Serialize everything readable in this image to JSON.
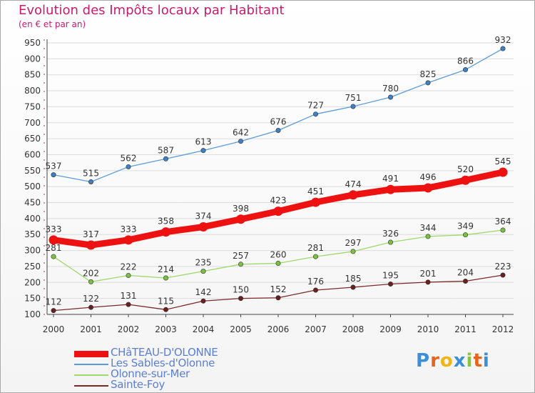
{
  "header": {
    "title": "Evolution des Impôts locaux par Habitant",
    "subtitle": "(en € et par an)"
  },
  "logo": {
    "text": "Proxiti",
    "letters": [
      "P",
      "r",
      "o",
      "x",
      "i",
      "t",
      "i"
    ],
    "colors": [
      "#3a8fd8",
      "#e8641e",
      "#f2b517",
      "#3a8fd8",
      "#8ac43f",
      "#e8641e",
      "#3a8fd8"
    ]
  },
  "colors": {
    "title": "#c71c6f",
    "axis_text": "#333333",
    "grid": "#dcdcdc",
    "label_text": "#333333",
    "legend_text": "#5b7fd1"
  },
  "chart_data": {
    "type": "line",
    "title": "Evolution des Impôts locaux par Habitant",
    "subtitle": "(en € et par an)",
    "x": [
      "2000",
      "2001",
      "2002",
      "2003",
      "2004",
      "2005",
      "2006",
      "2007",
      "2008",
      "2009",
      "2010",
      "2011",
      "2012"
    ],
    "ylim": [
      100,
      950
    ],
    "yticks": [
      100,
      150,
      200,
      250,
      300,
      350,
      400,
      450,
      500,
      550,
      600,
      650,
      700,
      750,
      800,
      850,
      900,
      950
    ],
    "grid": "horizontal",
    "legend_position": "bottom-left",
    "series": [
      {
        "name": "Les Sables-d'Olonne",
        "color": "#5b9bd5",
        "point_color": "#3f7fc2",
        "emphasis": false,
        "values": [
          537,
          515,
          562,
          587,
          613,
          642,
          676,
          727,
          751,
          780,
          825,
          866,
          932
        ]
      },
      {
        "name": "Olonne-sur-Mer",
        "color": "#9fd86b",
        "point_color": "#7cc043",
        "emphasis": false,
        "values": [
          281,
          202,
          222,
          214,
          235,
          257,
          260,
          281,
          297,
          326,
          344,
          349,
          364
        ]
      },
      {
        "name": "Sainte-Foy",
        "color": "#7b2a2a",
        "point_color": "#6b1f1f",
        "emphasis": false,
        "values": [
          112,
          122,
          131,
          115,
          142,
          150,
          152,
          176,
          185,
          195,
          201,
          204,
          223
        ]
      },
      {
        "name": "CHâTEAU-D'OLONNE",
        "color": "#ee1111",
        "point_color": "#ee1111",
        "emphasis": true,
        "values": [
          333,
          317,
          333,
          358,
          374,
          398,
          423,
          451,
          474,
          491,
          496,
          520,
          545
        ]
      }
    ],
    "legend_order": [
      "CHâTEAU-D'OLONNE",
      "Les Sables-d'Olonne",
      "Olonne-sur-Mer",
      "Sainte-Foy"
    ]
  }
}
